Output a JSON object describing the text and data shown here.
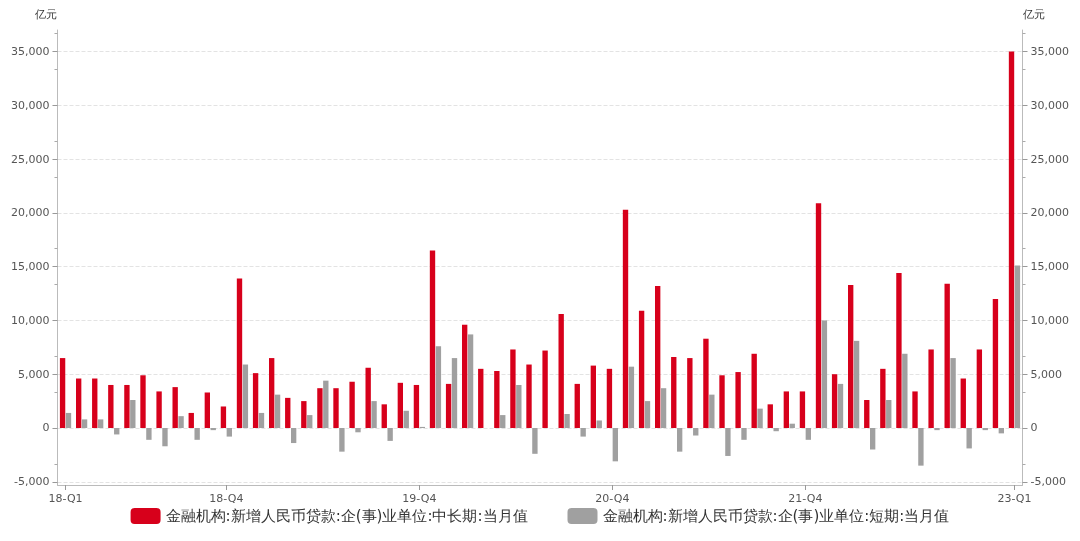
{
  "chart_data": {
    "type": "bar",
    "ylabel": "亿元",
    "y2label": "亿元",
    "categories": [
      "18-Q1",
      null,
      null,
      null,
      null,
      null,
      null,
      null,
      null,
      null,
      "18-Q4",
      null,
      null,
      null,
      null,
      null,
      null,
      null,
      null,
      null,
      null,
      null,
      "19-Q4",
      null,
      null,
      null,
      null,
      null,
      null,
      null,
      null,
      null,
      null,
      null,
      "20-Q4",
      null,
      null,
      null,
      null,
      null,
      null,
      null,
      null,
      null,
      null,
      null,
      "21-Q4",
      null,
      null,
      null,
      null,
      null,
      null,
      null,
      null,
      null,
      null,
      null,
      null,
      "23-Q1"
    ],
    "series": [
      {
        "name": "金融机构:新增人民币贷款:企(事)业单位:中长期:当月值",
        "color": "#d7001b",
        "values": [
          6500,
          4600,
          4600,
          4000,
          4000,
          4900,
          3400,
          3800,
          1400,
          3300,
          2000,
          13900,
          5100,
          6500,
          2800,
          2500,
          3700,
          3700,
          4300,
          5600,
          2200,
          4200,
          4000,
          16500,
          4100,
          9600,
          5500,
          5300,
          7300,
          5900,
          7200,
          10600,
          4100,
          5800,
          5500,
          20300,
          10900,
          13200,
          6600,
          6500,
          8300,
          4900,
          5200,
          6900,
          2200,
          3400,
          3400,
          20900,
          5000,
          13300,
          2600,
          5500,
          14400,
          3400,
          7300,
          13400,
          4600,
          7300,
          12000,
          35000
        ]
      },
      {
        "name": "金融机构:新增人民币贷款:企(事)业单位:短期:当月值",
        "color": "#a0a0a0",
        "values": [
          1400,
          800,
          800,
          -600,
          2600,
          -1100,
          -1700,
          1100,
          -1100,
          -200,
          -800,
          5900,
          1400,
          3100,
          -1400,
          1200,
          4400,
          -2200,
          -400,
          2500,
          -1200,
          1600,
          100,
          7600,
          6500,
          8700,
          0,
          1200,
          4000,
          -2400,
          0,
          1300,
          -800,
          700,
          -3100,
          5700,
          2500,
          3700,
          -2200,
          -700,
          3100,
          -2600,
          -1100,
          1800,
          -300,
          400,
          -1100,
          10000,
          4100,
          8100,
          -2000,
          2600,
          6900,
          -3500,
          -200,
          6500,
          -1900,
          -200,
          -500,
          15100
        ]
      }
    ],
    "ylim": [
      -5300,
      37000
    ],
    "yticks": [
      {
        "value": -5000,
        "label": "-5,000"
      },
      0,
      {
        "value": 5000,
        "label": "5,000"
      },
      {
        "value": 10000,
        "label": "10,000"
      },
      {
        "value": 15000,
        "label": "15,000"
      },
      {
        "value": 20000,
        "label": "20,000"
      },
      {
        "value": 25000,
        "label": "25,000"
      },
      {
        "value": 30000,
        "label": "30,000"
      },
      {
        "value": 35000,
        "label": "35,000"
      }
    ],
    "y2lim": [
      -5300,
      37000
    ],
    "y2ticks": [
      {
        "value": -5000,
        "label": "-5,000"
      },
      0,
      {
        "value": 5000,
        "label": "5,000"
      },
      {
        "value": 10000,
        "label": "10,000"
      },
      {
        "value": 15000,
        "label": "15,000"
      },
      {
        "value": 20000,
        "label": "20,000"
      },
      {
        "value": 25000,
        "label": "25,000"
      },
      {
        "value": 30000,
        "label": "30,000"
      },
      {
        "value": 35000,
        "label": "35,000"
      }
    ],
    "grid": "y",
    "legend": "bottom"
  }
}
